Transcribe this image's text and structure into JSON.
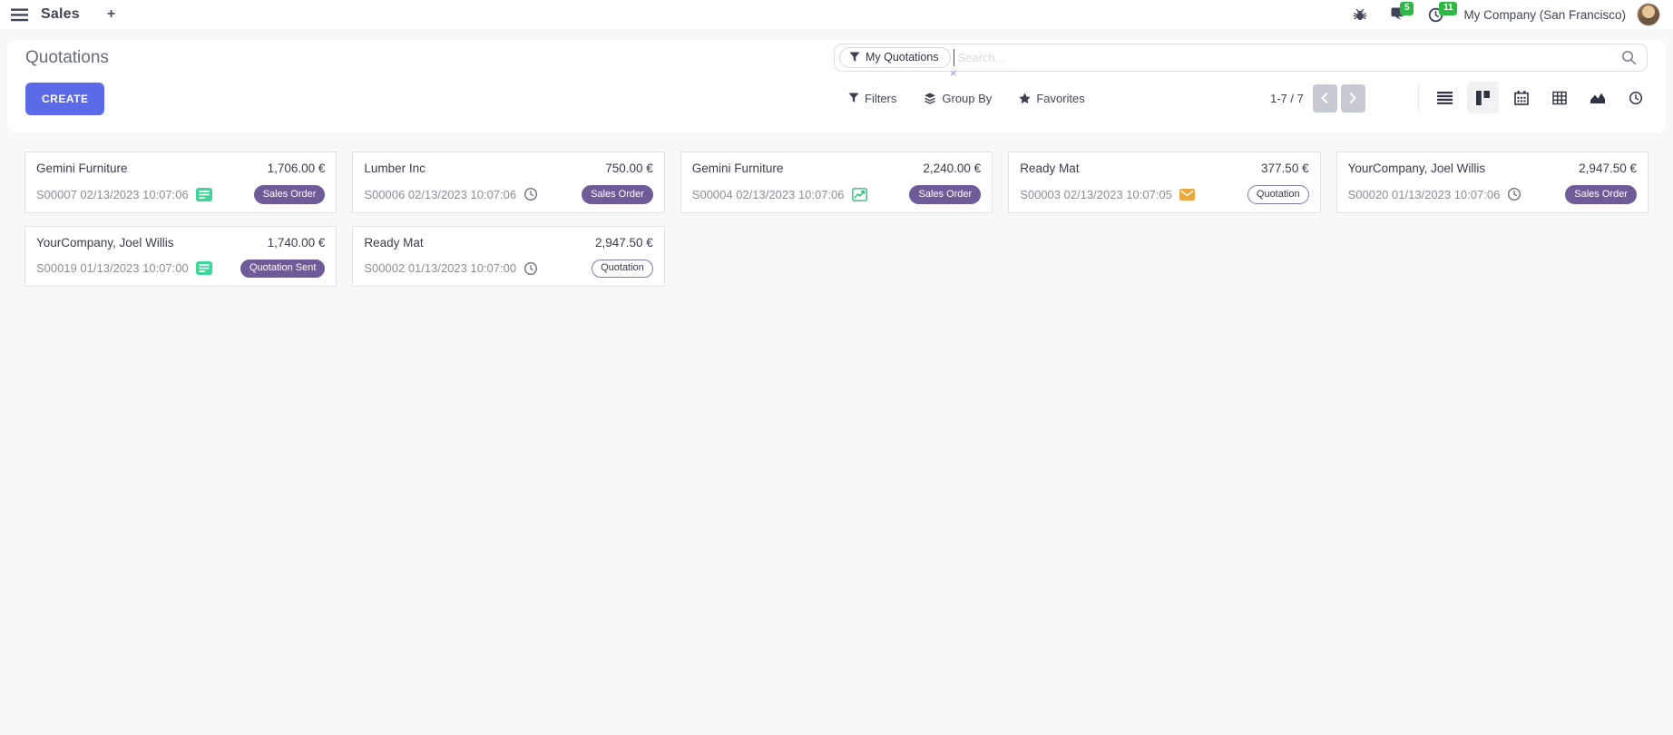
{
  "navbar": {
    "app_name": "Sales",
    "plus_label": "+",
    "chat_badge": "5",
    "activity_badge": "11",
    "company": "My Company (San Francisco)"
  },
  "control_panel": {
    "title": "Quotations",
    "create_label": "CREATE",
    "search": {
      "facet_label": "My Quotations",
      "remove_glyph": "×",
      "placeholder": "Search..."
    },
    "filters_label": "Filters",
    "group_by_label": "Group By",
    "favorites_label": "Favorites",
    "pager_text": "1-7 / 7",
    "views": [
      "list",
      "kanban",
      "calendar",
      "pivot",
      "graph",
      "activity"
    ],
    "active_view": "kanban"
  },
  "colors": {
    "primary": "#5b6ae8",
    "badge_purple": "#6e5b97",
    "badge_count_green": "#2eb944",
    "green_activity": "#3dd598",
    "green_chart": "#27c277",
    "amber_envelope": "#eaa83f"
  },
  "cards": [
    {
      "customer": "Gemini Furniture",
      "amount": "1,706.00 €",
      "ref": "S00007 02/13/2023 10:07:06",
      "activity_icon": "list-green",
      "status": "Sales Order",
      "status_style": "solid"
    },
    {
      "customer": "Lumber Inc",
      "amount": "750.00 €",
      "ref": "S00006 02/13/2023 10:07:06",
      "activity_icon": "clock",
      "status": "Sales Order",
      "status_style": "solid"
    },
    {
      "customer": "Gemini Furniture",
      "amount": "2,240.00 €",
      "ref": "S00004 02/13/2023 10:07:06",
      "activity_icon": "chart-green",
      "status": "Sales Order",
      "status_style": "solid"
    },
    {
      "customer": "Ready Mat",
      "amount": "377.50 €",
      "ref": "S00003 02/13/2023 10:07:05",
      "activity_icon": "envelope-orange",
      "status": "Quotation",
      "status_style": "outline"
    },
    {
      "customer": "YourCompany, Joel Willis",
      "amount": "2,947.50 €",
      "ref": "S00020 01/13/2023 10:07:06",
      "activity_icon": "clock",
      "status": "Sales Order",
      "status_style": "solid"
    },
    {
      "customer": "YourCompany, Joel Willis",
      "amount": "1,740.00 €",
      "ref": "S00019 01/13/2023 10:07:00",
      "activity_icon": "list-green",
      "status": "Quotation Sent",
      "status_style": "solid"
    },
    {
      "customer": "Ready Mat",
      "amount": "2,947.50 €",
      "ref": "S00002 01/13/2023 10:07:00",
      "activity_icon": "clock",
      "status": "Quotation",
      "status_style": "outline"
    }
  ]
}
